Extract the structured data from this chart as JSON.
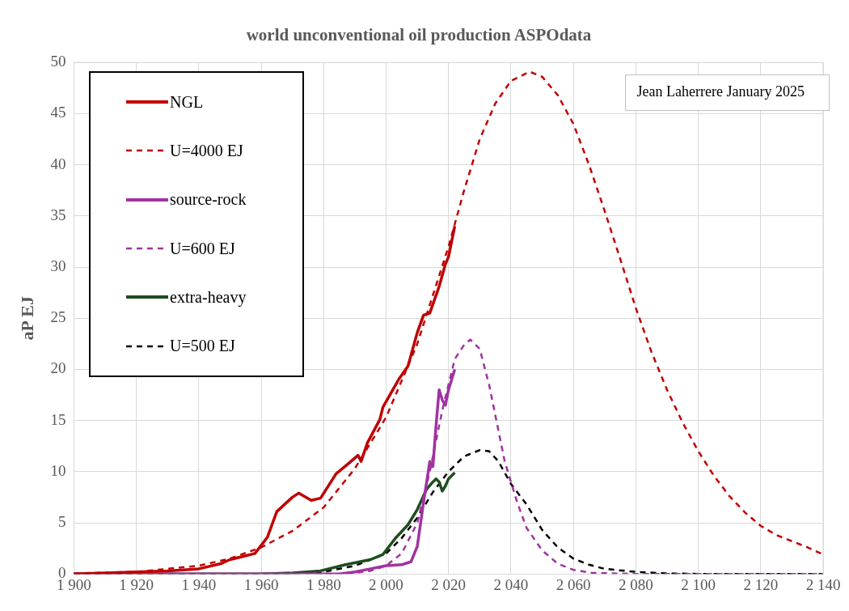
{
  "chart_data": {
    "type": "line",
    "title": "world unconventional oil production ASPOdata",
    "ylabel": "aP EJ",
    "annotations": [
      "Jean Laherrere January 2025"
    ],
    "legend": "top left",
    "grid": true,
    "xlim": [
      1900,
      2140
    ],
    "xticks": [
      {
        "value": 1900,
        "label": "1 900"
      },
      {
        "value": 1920,
        "label": "1 920"
      },
      {
        "value": 1940,
        "label": "1 940"
      },
      {
        "value": 1960,
        "label": "1 960"
      },
      {
        "value": 1980,
        "label": "1 980"
      },
      {
        "value": 2000,
        "label": "2 000"
      },
      {
        "value": 2020,
        "label": "2 020"
      },
      {
        "value": 2040,
        "label": "2 040"
      },
      {
        "value": 2060,
        "label": "2 060"
      },
      {
        "value": 2080,
        "label": "2 080"
      },
      {
        "value": 2100,
        "label": "2 100"
      },
      {
        "value": 2120,
        "label": "2 120"
      },
      {
        "value": 2140,
        "label": "2 140"
      }
    ],
    "ylim": [
      0,
      50
    ],
    "yticks": [
      0,
      5,
      10,
      15,
      20,
      25,
      30,
      35,
      40,
      45,
      50
    ],
    "series": [
      {
        "name": "NGL",
        "color": "#c00000",
        "x": [
          1900,
          1920,
          1930,
          1940,
          1947,
          1950,
          1954,
          1958,
          1962,
          1965,
          1970,
          1972,
          1976,
          1979,
          1984,
          1988,
          1991,
          1992,
          1994,
          1998,
          1999,
          2004,
          2007,
          2010,
          2012,
          2014,
          2017,
          2019,
          2020,
          2022
        ],
        "values": [
          0,
          0.2,
          0.3,
          0.5,
          1.0,
          1.4,
          1.7,
          2.0,
          3.6,
          6.1,
          7.5,
          7.9,
          7.2,
          7.4,
          9.8,
          10.8,
          11.6,
          11.0,
          12.8,
          15.1,
          16.3,
          19.0,
          20.3,
          23.6,
          25.3,
          25.5,
          28.1,
          30.3,
          31.0,
          34.0
        ]
      },
      {
        "name": "U=4000 EJ",
        "color": "#c00000",
        "line_style": "dashed",
        "x": [
          1900,
          1920,
          1940,
          1950,
          1960,
          1970,
          1980,
          1990,
          2000,
          2010,
          2020,
          2025,
          2030,
          2035,
          2040,
          2046,
          2050,
          2055,
          2060,
          2065,
          2070,
          2075,
          2080,
          2085,
          2090,
          2095,
          2100,
          2105,
          2110,
          2115,
          2120,
          2125,
          2130,
          2135,
          2140
        ],
        "values": [
          0.05,
          0.2,
          0.8,
          1.5,
          2.6,
          4.2,
          6.5,
          10.3,
          15.3,
          22.5,
          32,
          37.5,
          42.5,
          46,
          48.2,
          49.1,
          48.6,
          46.8,
          44,
          40,
          35.5,
          30.8,
          26,
          21.7,
          18,
          14.8,
          12,
          9.6,
          7.6,
          6,
          4.7,
          3.8,
          3.2,
          2.6,
          1.9
        ]
      },
      {
        "name": "source-rock",
        "color": "#a033a0",
        "x": [
          1900,
          1985,
          1990,
          1995,
          2000,
          2005,
          2008,
          2010,
          2012,
          2014,
          2015,
          2016,
          2017,
          2018,
          2019,
          2020,
          2021,
          2022
        ],
        "values": [
          0,
          0,
          0.2,
          0.5,
          0.8,
          0.9,
          1.2,
          2.7,
          7,
          11,
          10.5,
          14.5,
          18,
          17,
          16.5,
          18,
          19,
          20
        ]
      },
      {
        "name": "U=600 EJ",
        "color": "#a033a0",
        "line_style": "dashed",
        "x": [
          1900,
          1985,
          1990,
          1995,
          2000,
          2005,
          2010,
          2014,
          2018,
          2022,
          2025,
          2027,
          2030,
          2033,
          2035,
          2038,
          2042,
          2045,
          2050,
          2055,
          2060,
          2066,
          2080,
          2140
        ],
        "values": [
          0,
          0,
          0.1,
          0.3,
          0.8,
          2,
          5,
          10,
          16,
          21,
          22.4,
          22.9,
          22,
          18.5,
          15.5,
          11,
          7,
          4.5,
          2.3,
          1.0,
          0.4,
          0.1,
          0,
          0
        ]
      },
      {
        "name": "extra-heavy",
        "color": "#1e4d1e",
        "x": [
          1900,
          1960,
          1970,
          1979,
          1987,
          1995,
          1999,
          2003,
          2007,
          2010,
          2013,
          2015,
          2016,
          2017,
          2018,
          2019,
          2020,
          2022
        ],
        "values": [
          0,
          0,
          0.1,
          0.3,
          0.9,
          1.4,
          1.9,
          3.5,
          4.8,
          6.3,
          8.3,
          9.0,
          9.3,
          9.0,
          8.1,
          8.6,
          9.3,
          9.9
        ]
      },
      {
        "name": "U=500 EJ",
        "color": "#000000",
        "line_style": "dashed",
        "x": [
          1900,
          1960,
          1980,
          1990,
          2000,
          2005,
          2010,
          2015,
          2020,
          2025,
          2030,
          2033,
          2036,
          2040,
          2045,
          2048,
          2050,
          2055,
          2060,
          2065,
          2070,
          2080,
          2090,
          2100,
          2140
        ],
        "values": [
          0,
          0,
          0.2,
          0.8,
          2,
          3.5,
          5.5,
          8,
          10,
          11.5,
          12.1,
          12.0,
          11,
          8.8,
          6.8,
          5.3,
          4.3,
          2.6,
          1.5,
          0.9,
          0.5,
          0.2,
          0.05,
          0,
          0
        ]
      }
    ]
  }
}
